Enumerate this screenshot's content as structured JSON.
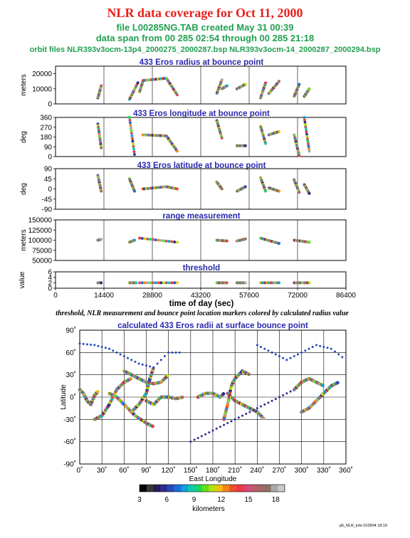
{
  "header": {
    "title": "NLR data coverage for Oct 11, 2000",
    "line1": "file L00285NG.TAB created May 31 00:39",
    "line2": "data span from 00 285 02:54 through 00 285 21:18",
    "line3": "orbit files NLR393v3ocm-13p4_2000275_2000287.bsp NLR393v3ocm-14_2000287_2000294.bsp"
  },
  "note": "threshold, NLR measurement and bounce point location markers colored by calculated radius value",
  "footer": "plt_NLR_info 010904 18:19",
  "colorbar": {
    "label": "kilometers",
    "range": [
      3,
      19
    ],
    "ticks": [
      "3",
      "6",
      "9",
      "12",
      "15",
      "18"
    ],
    "colors": [
      "#000000",
      "#383838",
      "#241c58",
      "#2c2c8c",
      "#2848b8",
      "#1870d8",
      "#10a0e0",
      "#10c8b0",
      "#18d860",
      "#60e018",
      "#b8e010",
      "#f0c010",
      "#f08818",
      "#f05028",
      "#e83848",
      "#d84870",
      "#c05878",
      "#a06860",
      "#907060",
      "#a8a8a8",
      "#c8c8c8"
    ]
  },
  "chart_data": [
    {
      "type": "scatter",
      "title": "433 Eros radius at bounce point",
      "xlabel": "",
      "ylabel": "meters",
      "ylim": [
        0,
        25000
      ],
      "yticks": [
        "0",
        "10000",
        "20000"
      ],
      "xlim": [
        0,
        86400
      ],
      "segments": [
        {
          "x": [
            12600,
            13600
          ],
          "y": [
            4000,
            12000
          ]
        },
        {
          "x": [
            22000,
            24500
          ],
          "y": [
            3000,
            14000
          ]
        },
        {
          "x": [
            25000,
            26000
          ],
          "y": [
            8000,
            15000
          ]
        },
        {
          "x": [
            26000,
            33000
          ],
          "y": [
            15500,
            17000
          ]
        },
        {
          "x": [
            33000,
            36200
          ],
          "y": [
            17000,
            6000
          ]
        },
        {
          "x": [
            48000,
            49500
          ],
          "y": [
            7000,
            16000
          ]
        },
        {
          "x": [
            49500,
            51000
          ],
          "y": [
            10000,
            12000
          ]
        },
        {
          "x": [
            54000,
            56500
          ],
          "y": [
            10000,
            13000
          ]
        },
        {
          "x": [
            61000,
            62500
          ],
          "y": [
            4000,
            14000
          ]
        },
        {
          "x": [
            63500,
            66500
          ],
          "y": [
            7000,
            15000
          ]
        },
        {
          "x": [
            71000,
            72500
          ],
          "y": [
            5000,
            13000
          ]
        },
        {
          "x": [
            74000,
            75500
          ],
          "y": [
            5000,
            10000
          ]
        }
      ]
    },
    {
      "type": "scatter",
      "title": "433 Eros longitude at bounce point",
      "xlabel": "",
      "ylabel": "deg",
      "ylim": [
        0,
        360
      ],
      "yticks": [
        "0",
        "90",
        "180",
        "270",
        "360"
      ],
      "xlim": [
        0,
        86400
      ],
      "segments": [
        {
          "x": [
            12600,
            13600
          ],
          "y": [
            300,
            80
          ]
        },
        {
          "x": [
            22000,
            23500
          ],
          "y": [
            360,
            20
          ]
        },
        {
          "x": [
            26000,
            33000
          ],
          "y": [
            200,
            190
          ]
        },
        {
          "x": [
            33000,
            36200
          ],
          "y": [
            190,
            50
          ]
        },
        {
          "x": [
            48000,
            49500
          ],
          "y": [
            330,
            170
          ]
        },
        {
          "x": [
            54000,
            56500
          ],
          "y": [
            100,
            100
          ]
        },
        {
          "x": [
            61000,
            62500
          ],
          "y": [
            280,
            120
          ]
        },
        {
          "x": [
            63500,
            66500
          ],
          "y": [
            200,
            230
          ]
        },
        {
          "x": [
            71000,
            72500
          ],
          "y": [
            200,
            10
          ]
        },
        {
          "x": [
            74000,
            75500
          ],
          "y": [
            360,
            50
          ]
        }
      ]
    },
    {
      "type": "scatter",
      "title": "433 Eros latitude at bounce point",
      "xlabel": "",
      "ylabel": "deg",
      "ylim": [
        -90,
        90
      ],
      "yticks": [
        "-90",
        "-45",
        "0",
        "45",
        "90"
      ],
      "xlim": [
        0,
        86400
      ],
      "segments": [
        {
          "x": [
            12600,
            13600
          ],
          "y": [
            60,
            -10
          ]
        },
        {
          "x": [
            22000,
            23500
          ],
          "y": [
            45,
            -10
          ]
        },
        {
          "x": [
            26000,
            33000
          ],
          "y": [
            0,
            10
          ]
        },
        {
          "x": [
            33000,
            36200
          ],
          "y": [
            10,
            0
          ]
        },
        {
          "x": [
            48000,
            49500
          ],
          "y": [
            30,
            0
          ]
        },
        {
          "x": [
            54000,
            56500
          ],
          "y": [
            -10,
            10
          ]
        },
        {
          "x": [
            61000,
            62500
          ],
          "y": [
            50,
            -10
          ]
        },
        {
          "x": [
            63500,
            66500
          ],
          "y": [
            5,
            -10
          ]
        },
        {
          "x": [
            71000,
            72500
          ],
          "y": [
            40,
            -15
          ]
        },
        {
          "x": [
            74000,
            75500
          ],
          "y": [
            20,
            -20
          ]
        }
      ]
    },
    {
      "type": "scatter",
      "title": "range measurement",
      "xlabel": "",
      "ylabel": "meters",
      "ylim": [
        50000,
        150000
      ],
      "yticks": [
        "50000",
        "75000",
        "100000",
        "125000",
        "150000"
      ],
      "xlim": [
        0,
        86400
      ],
      "segments": [
        {
          "x": [
            12600,
            13600
          ],
          "y": [
            100000,
            102000
          ]
        },
        {
          "x": [
            22000,
            23500
          ],
          "y": [
            95000,
            100000
          ]
        },
        {
          "x": [
            25000,
            36200
          ],
          "y": [
            105000,
            95000
          ]
        },
        {
          "x": [
            48000,
            51000
          ],
          "y": [
            100000,
            98000
          ]
        },
        {
          "x": [
            54000,
            56500
          ],
          "y": [
            98000,
            103000
          ]
        },
        {
          "x": [
            61000,
            66500
          ],
          "y": [
            105000,
            92000
          ]
        },
        {
          "x": [
            71000,
            75500
          ],
          "y": [
            100000,
            95000
          ]
        }
      ]
    },
    {
      "type": "scatter",
      "title": "threshold",
      "xlabel": "time of day (sec)",
      "ylabel": "value",
      "ylim": [
        0,
        6
      ],
      "yticks": [
        "0",
        "2",
        "4",
        "6"
      ],
      "xlim": [
        0,
        86400
      ],
      "xticks": [
        "0",
        "14400",
        "28800",
        "43200",
        "57600",
        "72000",
        "86400"
      ],
      "segments": [
        {
          "x": [
            12600,
            13600
          ],
          "y": [
            2,
            2
          ]
        },
        {
          "x": [
            22000,
            24000
          ],
          "y": [
            2,
            2
          ]
        },
        {
          "x": [
            25000,
            36200
          ],
          "y": [
            2,
            2
          ]
        },
        {
          "x": [
            48000,
            51000
          ],
          "y": [
            2,
            2
          ]
        },
        {
          "x": [
            54000,
            56500
          ],
          "y": [
            2,
            2
          ]
        },
        {
          "x": [
            61000,
            66500
          ],
          "y": [
            2,
            2
          ]
        },
        {
          "x": [
            71000,
            75500
          ],
          "y": [
            2,
            2
          ]
        }
      ]
    },
    {
      "type": "scatter",
      "title": "calculated 433 Eros radii at surface bounce point",
      "xlabel": "East Longitude",
      "ylabel": "Latitude",
      "xlim": [
        0,
        360
      ],
      "ylim": [
        -90,
        90
      ],
      "xticks": [
        "0˚",
        "30˚",
        "60˚",
        "90˚",
        "120˚",
        "150˚",
        "180˚",
        "210˚",
        "240˚",
        "270˚",
        "300˚",
        "330˚",
        "360˚"
      ],
      "yticks": [
        "-90˚",
        "-60˚",
        "-30˚",
        "0˚",
        "30˚",
        "60˚",
        "90˚"
      ],
      "tracks": [
        {
          "lon": [
            0,
            5,
            10,
            15,
            20,
            25
          ],
          "lat": [
            10,
            5,
            -5,
            -10,
            2,
            8
          ]
        },
        {
          "lon": [
            20,
            30,
            40,
            50,
            60,
            70
          ],
          "lat": [
            -30,
            -25,
            -10,
            10,
            20,
            25
          ]
        },
        {
          "lon": [
            60,
            70,
            80,
            90,
            100,
            110,
            120
          ],
          "lat": [
            35,
            30,
            25,
            20,
            18,
            20,
            30
          ]
        },
        {
          "lon": [
            40,
            50,
            60,
            75,
            90,
            100
          ],
          "lat": [
            5,
            0,
            -10,
            -25,
            -35,
            -40
          ]
        },
        {
          "lon": [
            70,
            80,
            90,
            95,
            100
          ],
          "lat": [
            -20,
            -10,
            5,
            25,
            40
          ]
        },
        {
          "lon": [
            90,
            100,
            110,
            120,
            130,
            140
          ],
          "lat": [
            -5,
            -10,
            0,
            0,
            -2,
            0
          ]
        },
        {
          "lon": [
            160,
            170,
            180,
            190,
            195
          ],
          "lat": [
            0,
            5,
            5,
            0,
            5
          ]
        },
        {
          "lon": [
            195,
            200,
            205,
            210,
            220,
            230
          ],
          "lat": [
            -30,
            -10,
            15,
            25,
            35,
            30
          ]
        },
        {
          "lon": [
            200,
            210,
            220,
            230,
            240,
            250
          ],
          "lat": [
            5,
            -5,
            -10,
            -15,
            -20,
            -30
          ]
        },
        {
          "lon": [
            290,
            300,
            310,
            320,
            330
          ],
          "lat": [
            10,
            20,
            25,
            20,
            15
          ]
        },
        {
          "lon": [
            300,
            310,
            320,
            330,
            340,
            350
          ],
          "lat": [
            -20,
            -15,
            -5,
            5,
            15,
            20
          ]
        },
        {
          "lon": [
            0,
            20,
            40,
            60,
            80,
            100,
            120,
            140
          ],
          "lat": [
            72,
            70,
            65,
            55,
            45,
            40,
            60,
            60
          ]
        },
        {
          "lon": [
            150,
            170,
            190,
            210,
            230,
            250,
            270,
            290
          ],
          "lat": [
            -60,
            -50,
            -40,
            -30,
            -20,
            -10,
            0,
            10
          ]
        },
        {
          "lon": [
            240,
            260,
            280,
            300,
            320,
            340,
            360
          ],
          "lat": [
            70,
            60,
            50,
            60,
            70,
            65,
            50
          ]
        }
      ]
    }
  ]
}
